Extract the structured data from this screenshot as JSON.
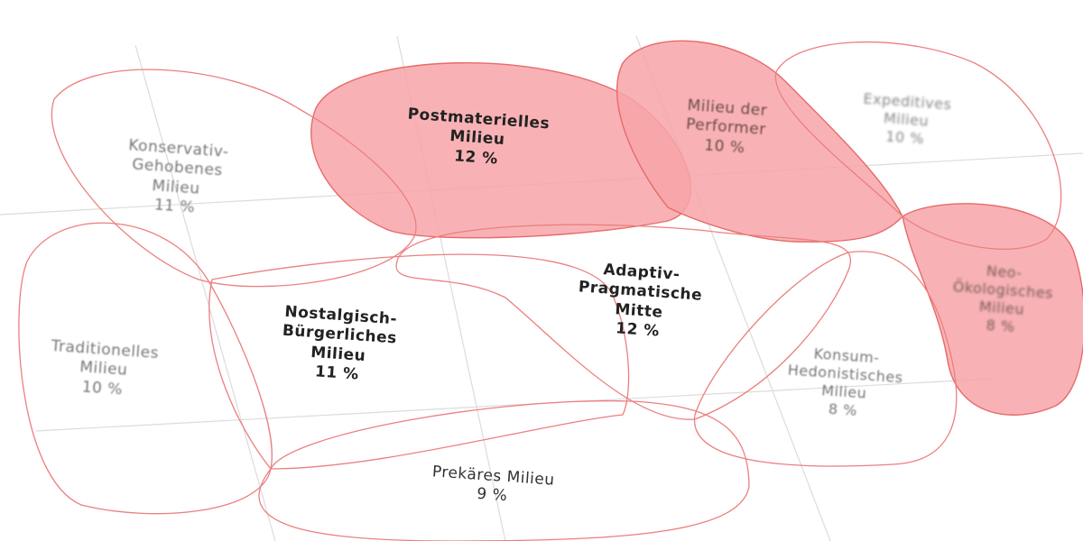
{
  "colors": {
    "highlight_fill": "#f7a4a8",
    "outline": "#e86a6a",
    "grid": "#d8d8d8"
  },
  "milieus": [
    {
      "id": "konservativ",
      "lines": [
        "Konservativ-",
        "Gehobenes",
        "Milieu"
      ],
      "share": "11 %",
      "highlighted": false
    },
    {
      "id": "postmateriell",
      "lines": [
        "Postmaterielles",
        "Milieu"
      ],
      "share": "12 %",
      "highlighted": true
    },
    {
      "id": "performer",
      "lines": [
        "Milieu der",
        "Performer"
      ],
      "share": "10 %",
      "highlighted": true
    },
    {
      "id": "expeditiv",
      "lines": [
        "Expeditives",
        "Milieu"
      ],
      "share": "10 %",
      "highlighted": false
    },
    {
      "id": "traditionell",
      "lines": [
        "Traditionelles",
        "Milieu"
      ],
      "share": "10 %",
      "highlighted": false
    },
    {
      "id": "nostalgisch",
      "lines": [
        "Nostalgisch-",
        "Bürgerliches",
        "Milieu"
      ],
      "share": "11 %",
      "highlighted": false
    },
    {
      "id": "adaptiv",
      "lines": [
        "Adaptiv-",
        "Pragmatische",
        "Mitte"
      ],
      "share": "12 %",
      "highlighted": false
    },
    {
      "id": "neooeko",
      "lines": [
        "Neo-",
        "Ökologisches",
        "Milieu"
      ],
      "share": "8 %",
      "highlighted": true
    },
    {
      "id": "konsum",
      "lines": [
        "Konsum-",
        "Hedonistisches",
        "Milieu"
      ],
      "share": "8 %",
      "highlighted": false
    },
    {
      "id": "prekaer",
      "lines": [
        "Prekäres Milieu"
      ],
      "share": "9 %",
      "highlighted": false
    }
  ]
}
